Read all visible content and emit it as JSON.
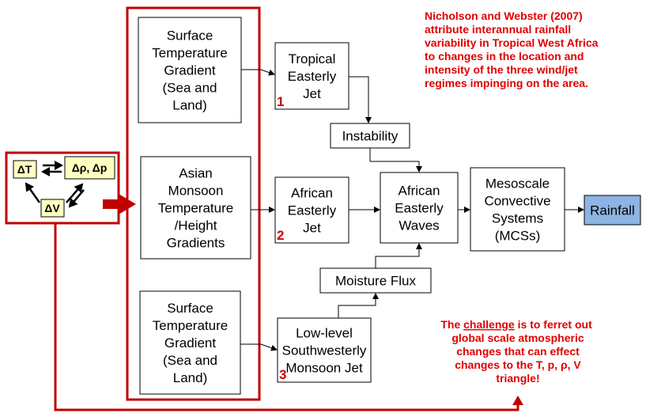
{
  "triangle": {
    "delta_t": "ΔT",
    "delta_rho_p": "Δρ, Δp",
    "delta_v": "ΔV"
  },
  "boxes": [
    {
      "lines": [
        "Surface",
        "Temperature",
        "Gradient",
        "(Sea and",
        "Land)"
      ]
    },
    {
      "lines": [
        "Asian",
        "Monsoon",
        "Temperature",
        "/Height",
        "Gradients"
      ]
    },
    {
      "lines": [
        "Surface",
        "Temperature",
        "Gradient",
        "(Sea and",
        "Land)"
      ]
    },
    {
      "lines": [
        "Tropical",
        "Easterly",
        "Jet"
      ],
      "tag": "1"
    },
    {
      "lines": [
        "Instability"
      ]
    },
    {
      "lines": [
        "African",
        "Easterly",
        "Jet"
      ],
      "tag": "2"
    },
    {
      "lines": [
        "African",
        "Easterly",
        "Waves"
      ]
    },
    {
      "lines": [
        "Mesoscale",
        "Convective",
        "Systems",
        "(MCSs)"
      ]
    },
    {
      "lines": [
        "Rainfall"
      ]
    },
    {
      "lines": [
        "Moisture Flux"
      ]
    },
    {
      "lines": [
        "Low-level",
        "Southwesterly",
        "Monsoon Jet"
      ],
      "tag": "3"
    }
  ],
  "note_top": [
    "Nicholson and Webster (2007)",
    "attribute interannual rainfall",
    "variability in Tropical West Africa",
    "to changes in the location and",
    "intensity of the three wind/jet",
    "regimes impinging on the area."
  ],
  "note_bottom": {
    "first": [
      "The ",
      "challenge",
      " is to ferret out"
    ],
    "lines": [
      "global scale atmospheric",
      "changes that can effect",
      "changes to the T, p, ρ, V",
      "triangle!"
    ]
  }
}
